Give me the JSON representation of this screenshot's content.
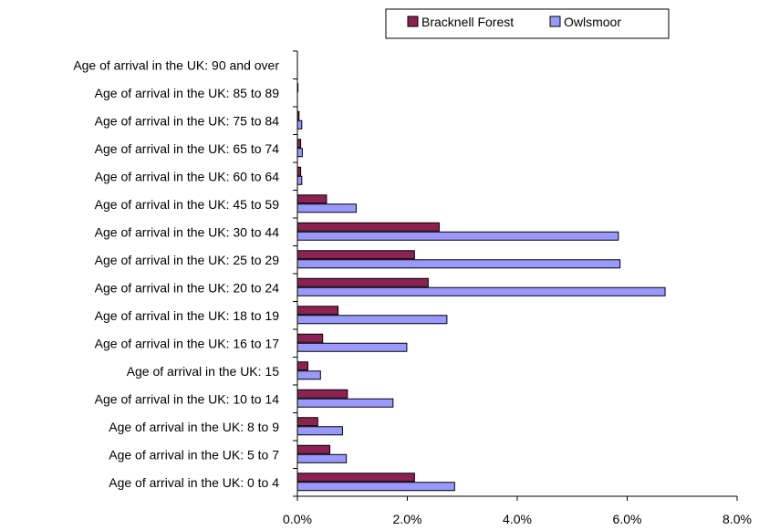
{
  "chart_data": {
    "type": "bar",
    "orientation": "horizontal",
    "title": "",
    "xlabel": "",
    "ylabel": "",
    "xlim": [
      0,
      0.08
    ],
    "x_ticks": [
      "0.0%",
      "2.0%",
      "4.0%",
      "6.0%",
      "8.0%"
    ],
    "legend_position": "top-right",
    "grid": false,
    "categories": [
      "Age of arrival in the UK: 0 to 4",
      "Age of arrival in the UK: 5 to 7",
      "Age of arrival in the UK: 8 to 9",
      "Age of arrival in the UK: 10 to 14",
      "Age of arrival in the UK: 15",
      "Age of arrival in the UK: 16 to 17",
      "Age of arrival in the UK: 18 to 19",
      "Age of arrival in the UK: 20 to 24",
      "Age of arrival in the UK: 25 to 29",
      "Age of arrival in the UK: 30 to 44",
      "Age of arrival in the UK: 45 to 59",
      "Age of arrival in the UK: 60 to 64",
      "Age of arrival in the UK: 65 to 74",
      "Age of arrival in the UK: 75 to 84",
      "Age of arrival in the UK: 85 to 89",
      "Age of arrival in the UK: 90 and over"
    ],
    "series": [
      {
        "name": "Bracknell Forest",
        "color": "#8B2252",
        "values": [
          0.0213,
          0.0059,
          0.0037,
          0.0091,
          0.0019,
          0.0046,
          0.0074,
          0.0238,
          0.0213,
          0.0258,
          0.0053,
          0.0006,
          0.0006,
          0.0003,
          0.0001,
          0.0
        ]
      },
      {
        "name": "Owlsmoor",
        "color": "#9999FF",
        "values": [
          0.0286,
          0.0089,
          0.0082,
          0.0174,
          0.0042,
          0.0199,
          0.0272,
          0.0669,
          0.0587,
          0.0584,
          0.0107,
          0.0008,
          0.0009,
          0.0008,
          0.0,
          0.0
        ]
      }
    ]
  }
}
